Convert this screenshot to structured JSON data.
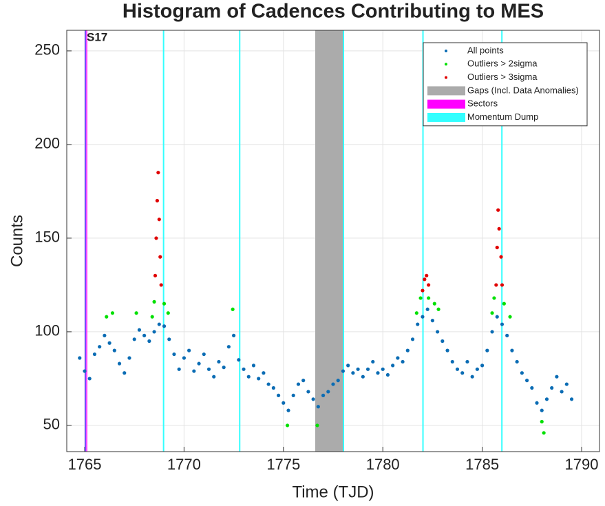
{
  "chart_data": {
    "type": "scatter",
    "title": "Histogram of Cadences Contributing to MES",
    "xlabel": "Time (TJD)",
    "ylabel": "Counts",
    "xlim": [
      1764.1,
      1790.9
    ],
    "ylim": [
      36,
      261
    ],
    "xticks": [
      1765,
      1770,
      1775,
      1780,
      1785,
      1790
    ],
    "yticks": [
      50,
      100,
      150,
      200,
      250
    ],
    "grid": true,
    "legend": "upper right",
    "series": [
      {
        "name": "All points",
        "color": "#0a6cb4",
        "x": [
          1764.75,
          1765,
          1765.25,
          1765.5,
          1765.75,
          1766,
          1766.25,
          1766.5,
          1766.75,
          1767,
          1767.25,
          1767.5,
          1767.75,
          1768,
          1768.25,
          1768.5,
          1768.75,
          1769,
          1769.25,
          1769.5,
          1769.75,
          1770,
          1770.25,
          1770.5,
          1770.75,
          1771,
          1771.25,
          1771.5,
          1771.75,
          1772,
          1772.25,
          1772.5,
          1772.75,
          1773,
          1773.25,
          1773.5,
          1773.75,
          1774,
          1774.25,
          1774.5,
          1774.75,
          1775,
          1775.25,
          1775.5,
          1775.75,
          1776,
          1776.25,
          1776.5,
          1776.75,
          1777,
          1777.25,
          1777.5,
          1777.75,
          1778,
          1778.25,
          1778.5,
          1778.75,
          1779,
          1779.25,
          1779.5,
          1779.75,
          1780,
          1780.25,
          1780.5,
          1780.75,
          1781,
          1781.25,
          1781.5,
          1781.75,
          1782,
          1782.25,
          1782.5,
          1782.75,
          1783,
          1783.25,
          1783.5,
          1783.75,
          1784,
          1784.25,
          1784.5,
          1784.75,
          1785,
          1785.25,
          1785.5,
          1785.75,
          1786,
          1786.25,
          1786.5,
          1786.75,
          1787,
          1787.25,
          1787.5,
          1787.75,
          1788,
          1788.25,
          1788.5,
          1788.75,
          1789,
          1789.25,
          1789.5
        ],
        "values": [
          86,
          79,
          75,
          88,
          92,
          98,
          94,
          90,
          83,
          78,
          86,
          96,
          101,
          98,
          95,
          100,
          104,
          103,
          96,
          88,
          80,
          86,
          90,
          79,
          83,
          88,
          80,
          76,
          84,
          81,
          92,
          98,
          85,
          80,
          76,
          82,
          75,
          78,
          72,
          70,
          66,
          62,
          58,
          66,
          72,
          74,
          68,
          64,
          60,
          66,
          68,
          72,
          74,
          79,
          82,
          78,
          80,
          76,
          80,
          84,
          78,
          80,
          77,
          82,
          86,
          84,
          90,
          96,
          104,
          108,
          112,
          106,
          100,
          95,
          90,
          84,
          80,
          78,
          84,
          76,
          80,
          82,
          90,
          100,
          108,
          104,
          98,
          90,
          84,
          78,
          74,
          70,
          62,
          58,
          64,
          70,
          76,
          68,
          72,
          64
        ]
      },
      {
        "name": "Outliers > 2sigma",
        "color": "#00e000",
        "x": [
          1766.1,
          1766.4,
          1767.6,
          1768.4,
          1768.5,
          1769.0,
          1769.2,
          1772.45,
          1775.2,
          1776.7,
          1781.7,
          1781.9,
          1782.3,
          1782.6,
          1782.8,
          1785.5,
          1785.6,
          1786.1,
          1786.4,
          1788.0,
          1788.1
        ],
        "values": [
          108,
          110,
          110,
          108,
          116,
          115,
          110,
          112,
          50,
          50,
          110,
          118,
          118,
          115,
          112,
          110,
          118,
          115,
          108,
          52,
          46
        ]
      },
      {
        "name": "Outliers > 3sigma",
        "color": "#e00000",
        "x": [
          1768.55,
          1768.6,
          1768.65,
          1768.7,
          1768.75,
          1768.8,
          1768.85,
          1782.0,
          1782.1,
          1782.2,
          1782.3,
          1785.7,
          1785.75,
          1785.8,
          1785.85,
          1785.95,
          1786.0
        ],
        "values": [
          130,
          150,
          170,
          185,
          160,
          140,
          125,
          122,
          128,
          130,
          125,
          125,
          145,
          165,
          155,
          140,
          125
        ]
      }
    ],
    "gaps": {
      "name": "Gaps (Incl. Data Anomalies)",
      "color": "#ababab",
      "ranges": [
        [
          1776.6,
          1778.0
        ]
      ]
    },
    "sectors": {
      "name": "Sectors",
      "color": "#ff00ff",
      "positions": [
        1765.07
      ],
      "labels": [
        "S17"
      ]
    },
    "momentum_dumps": {
      "name": "Momentum Dump",
      "color": "#33ffff",
      "positions": [
        1768.97,
        1772.8,
        1778.02,
        1782.02,
        1785.99
      ]
    }
  }
}
